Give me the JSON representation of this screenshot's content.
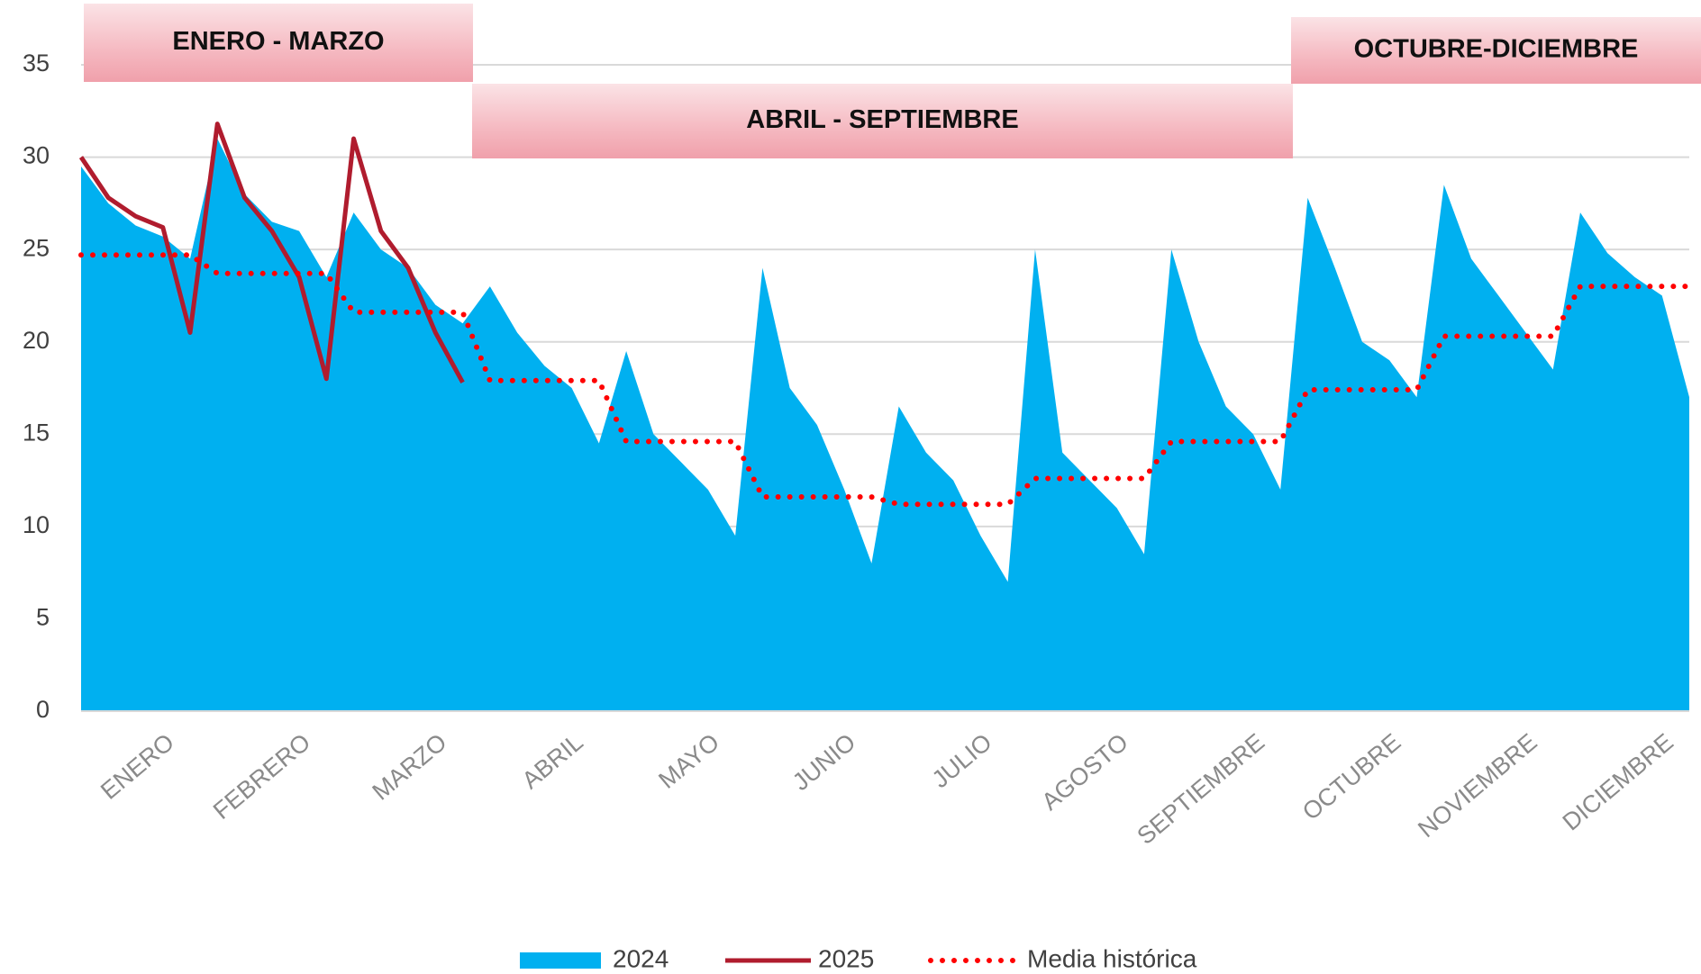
{
  "chart_data": {
    "type": "area",
    "categories": [
      null,
      null,
      "ENERO",
      null,
      null,
      null,
      null,
      "FEBRERO",
      null,
      null,
      null,
      null,
      "MARZO",
      null,
      null,
      null,
      null,
      "ABRIL",
      null,
      null,
      null,
      null,
      "MAYO",
      null,
      null,
      null,
      null,
      "JUNIO",
      null,
      null,
      null,
      null,
      "JULIO",
      null,
      null,
      null,
      null,
      "AGOSTO",
      null,
      null,
      null,
      null,
      "SEPTIEMBRE",
      null,
      null,
      null,
      null,
      "OCTUBRE",
      null,
      null,
      null,
      null,
      "NOVIEMBRE",
      null,
      null,
      null,
      null,
      "DICIEMBRE",
      null,
      null
    ],
    "series": [
      {
        "name": "2024",
        "type": "area",
        "color": "#00b0f0",
        "values": [
          29.5,
          27.5,
          26.3,
          25.7,
          24.5,
          31,
          28,
          26.5,
          26,
          23.5,
          27,
          25,
          24,
          22,
          21,
          23,
          20.5,
          18.7,
          17.5,
          14.5,
          19.5,
          15,
          13.5,
          12,
          9.5,
          24,
          17.5,
          15.5,
          12,
          8,
          16.5,
          14,
          12.5,
          9.5,
          7,
          25,
          14,
          12.5,
          11,
          8.5,
          25,
          20,
          16.5,
          15,
          12,
          27.8,
          24,
          20,
          19,
          17,
          28.5,
          24.5,
          22.5,
          20.5,
          18.5,
          27,
          24.8,
          23.5,
          22.5,
          17
        ]
      },
      {
        "name": "2025",
        "type": "line",
        "color": "#b01c2e",
        "values": [
          30,
          27.8,
          26.8,
          26.2,
          20.5,
          31.8,
          27.8,
          26,
          23.5,
          18,
          31,
          26,
          24,
          20.5,
          17.8,
          null,
          null,
          null,
          null,
          null,
          null,
          null,
          null,
          null,
          null,
          null,
          null,
          null,
          null,
          null,
          null,
          null,
          null,
          null,
          null,
          null,
          null,
          null,
          null,
          null,
          null,
          null,
          null,
          null,
          null,
          null,
          null,
          null,
          null,
          null,
          null,
          null,
          null,
          null,
          null,
          null,
          null,
          null,
          null,
          null
        ]
      },
      {
        "name": "Media histórica",
        "type": "dotted",
        "color": "#ff0000",
        "values": [
          24.7,
          24.7,
          24.7,
          24.7,
          24.7,
          23.7,
          23.7,
          23.7,
          23.7,
          23.7,
          21.6,
          21.6,
          21.6,
          21.6,
          21.6,
          17.9,
          17.9,
          17.9,
          17.9,
          17.9,
          14.6,
          14.6,
          14.6,
          14.6,
          14.6,
          11.6,
          11.6,
          11.6,
          11.6,
          11.6,
          11.2,
          11.2,
          11.2,
          11.2,
          11.2,
          12.6,
          12.6,
          12.6,
          12.6,
          12.6,
          14.6,
          14.6,
          14.6,
          14.6,
          14.6,
          17.4,
          17.4,
          17.4,
          17.4,
          17.4,
          20.3,
          20.3,
          20.3,
          20.3,
          20.3,
          23,
          23,
          23,
          23,
          23
        ]
      }
    ],
    "ylim": [
      0,
      35
    ],
    "yticks": [
      0,
      5,
      10,
      15,
      20,
      25,
      30,
      35
    ],
    "grid": true,
    "annotations": [
      "ENERO - MARZO",
      "ABRIL - SEPTIEMBRE",
      "OCTUBRE-DICIEMBRE"
    ],
    "legend": "bottom"
  }
}
